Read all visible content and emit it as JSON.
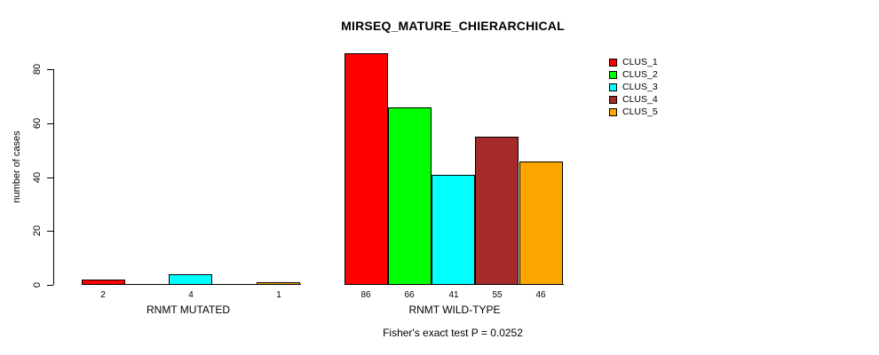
{
  "chart_data": {
    "type": "bar",
    "title": "MIRSEQ_MATURE_CHIERARCHICAL",
    "ylabel": "number of cases",
    "ylim": [
      0,
      86
    ],
    "yticks": [
      0,
      20,
      40,
      60,
      80
    ],
    "grid": false,
    "legend_position": "top-right",
    "categories": [
      "RNMT MUTATED",
      "RNMT WILD-TYPE"
    ],
    "series": [
      {
        "name": "CLUS_1",
        "color": "#FF0000",
        "values": [
          2,
          86
        ]
      },
      {
        "name": "CLUS_2",
        "color": "#00FF00",
        "values": [
          0,
          66
        ]
      },
      {
        "name": "CLUS_3",
        "color": "#00FFFF",
        "values": [
          4,
          41
        ]
      },
      {
        "name": "CLUS_4",
        "color": "#A52A2A",
        "values": [
          0,
          55
        ]
      },
      {
        "name": "CLUS_5",
        "color": "#FFA500",
        "values": [
          1,
          46
        ]
      }
    ],
    "bar_value_labels": {
      "RNMT MUTATED": [
        2,
        4,
        1
      ],
      "RNMT WILD-TYPE": [
        86,
        66,
        41,
        55,
        46
      ]
    },
    "annotation": "Fisher's exact test P = 0.0252"
  }
}
